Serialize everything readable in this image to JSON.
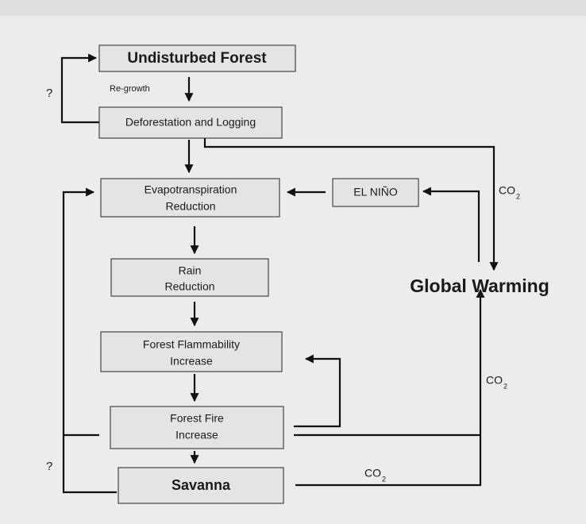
{
  "nodes": [
    {
      "label": "Undisturbed Forest"
    },
    {
      "label": "Deforestation and Logging"
    },
    {
      "label": [
        "Evapotranspiration",
        "Reduction"
      ]
    },
    {
      "label": "EL NIÑO"
    },
    {
      "label": [
        "Rain",
        "Reduction"
      ]
    },
    {
      "label": [
        "Forest Flammability",
        "Increase"
      ]
    },
    {
      "label": [
        "Forest Fire",
        "Increase"
      ]
    },
    {
      "label": "Savanna"
    },
    {
      "label": "Global Warming"
    }
  ],
  "annotations": {
    "regrowth": "Re-growth",
    "question_top": "?",
    "question_bottom": "?"
  },
  "co2_labels": [
    {
      "base": "CO",
      "sub": "2"
    },
    {
      "base": "CO",
      "sub": "2"
    },
    {
      "base": "CO",
      "sub": "2"
    }
  ]
}
